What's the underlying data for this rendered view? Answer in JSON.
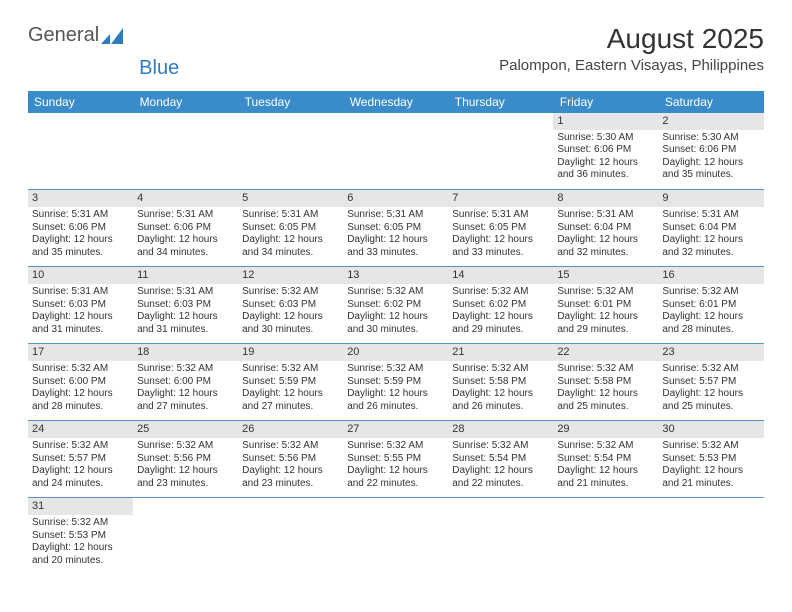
{
  "brand": {
    "general": "General",
    "blue": "Blue"
  },
  "title": "August 2025",
  "location": "Palompon, Eastern Visayas, Philippines",
  "colors": {
    "header_bg": "#3a8bc9",
    "header_text": "#ffffff",
    "daynum_bg": "#e6e6e6",
    "row_divider": "#5593c8",
    "text": "#333333",
    "logo_blue": "#2f7bbf"
  },
  "fonts": {
    "title_size_pt": 21,
    "location_size_pt": 11,
    "dayhead_size_pt": 9,
    "daynum_size_pt": 8,
    "detail_size_pt": 7.5
  },
  "day_headers": [
    "Sunday",
    "Monday",
    "Tuesday",
    "Wednesday",
    "Thursday",
    "Friday",
    "Saturday"
  ],
  "weeks": [
    [
      null,
      null,
      null,
      null,
      null,
      {
        "n": "1",
        "sunrise": "5:30 AM",
        "sunset": "6:06 PM",
        "day_h": "12",
        "day_m": "36"
      },
      {
        "n": "2",
        "sunrise": "5:30 AM",
        "sunset": "6:06 PM",
        "day_h": "12",
        "day_m": "35"
      }
    ],
    [
      {
        "n": "3",
        "sunrise": "5:31 AM",
        "sunset": "6:06 PM",
        "day_h": "12",
        "day_m": "35"
      },
      {
        "n": "4",
        "sunrise": "5:31 AM",
        "sunset": "6:06 PM",
        "day_h": "12",
        "day_m": "34"
      },
      {
        "n": "5",
        "sunrise": "5:31 AM",
        "sunset": "6:05 PM",
        "day_h": "12",
        "day_m": "34"
      },
      {
        "n": "6",
        "sunrise": "5:31 AM",
        "sunset": "6:05 PM",
        "day_h": "12",
        "day_m": "33"
      },
      {
        "n": "7",
        "sunrise": "5:31 AM",
        "sunset": "6:05 PM",
        "day_h": "12",
        "day_m": "33"
      },
      {
        "n": "8",
        "sunrise": "5:31 AM",
        "sunset": "6:04 PM",
        "day_h": "12",
        "day_m": "32"
      },
      {
        "n": "9",
        "sunrise": "5:31 AM",
        "sunset": "6:04 PM",
        "day_h": "12",
        "day_m": "32"
      }
    ],
    [
      {
        "n": "10",
        "sunrise": "5:31 AM",
        "sunset": "6:03 PM",
        "day_h": "12",
        "day_m": "31"
      },
      {
        "n": "11",
        "sunrise": "5:31 AM",
        "sunset": "6:03 PM",
        "day_h": "12",
        "day_m": "31"
      },
      {
        "n": "12",
        "sunrise": "5:32 AM",
        "sunset": "6:03 PM",
        "day_h": "12",
        "day_m": "30"
      },
      {
        "n": "13",
        "sunrise": "5:32 AM",
        "sunset": "6:02 PM",
        "day_h": "12",
        "day_m": "30"
      },
      {
        "n": "14",
        "sunrise": "5:32 AM",
        "sunset": "6:02 PM",
        "day_h": "12",
        "day_m": "29"
      },
      {
        "n": "15",
        "sunrise": "5:32 AM",
        "sunset": "6:01 PM",
        "day_h": "12",
        "day_m": "29"
      },
      {
        "n": "16",
        "sunrise": "5:32 AM",
        "sunset": "6:01 PM",
        "day_h": "12",
        "day_m": "28"
      }
    ],
    [
      {
        "n": "17",
        "sunrise": "5:32 AM",
        "sunset": "6:00 PM",
        "day_h": "12",
        "day_m": "28"
      },
      {
        "n": "18",
        "sunrise": "5:32 AM",
        "sunset": "6:00 PM",
        "day_h": "12",
        "day_m": "27"
      },
      {
        "n": "19",
        "sunrise": "5:32 AM",
        "sunset": "5:59 PM",
        "day_h": "12",
        "day_m": "27"
      },
      {
        "n": "20",
        "sunrise": "5:32 AM",
        "sunset": "5:59 PM",
        "day_h": "12",
        "day_m": "26"
      },
      {
        "n": "21",
        "sunrise": "5:32 AM",
        "sunset": "5:58 PM",
        "day_h": "12",
        "day_m": "26"
      },
      {
        "n": "22",
        "sunrise": "5:32 AM",
        "sunset": "5:58 PM",
        "day_h": "12",
        "day_m": "25"
      },
      {
        "n": "23",
        "sunrise": "5:32 AM",
        "sunset": "5:57 PM",
        "day_h": "12",
        "day_m": "25"
      }
    ],
    [
      {
        "n": "24",
        "sunrise": "5:32 AM",
        "sunset": "5:57 PM",
        "day_h": "12",
        "day_m": "24"
      },
      {
        "n": "25",
        "sunrise": "5:32 AM",
        "sunset": "5:56 PM",
        "day_h": "12",
        "day_m": "23"
      },
      {
        "n": "26",
        "sunrise": "5:32 AM",
        "sunset": "5:56 PM",
        "day_h": "12",
        "day_m": "23"
      },
      {
        "n": "27",
        "sunrise": "5:32 AM",
        "sunset": "5:55 PM",
        "day_h": "12",
        "day_m": "22"
      },
      {
        "n": "28",
        "sunrise": "5:32 AM",
        "sunset": "5:54 PM",
        "day_h": "12",
        "day_m": "22"
      },
      {
        "n": "29",
        "sunrise": "5:32 AM",
        "sunset": "5:54 PM",
        "day_h": "12",
        "day_m": "21"
      },
      {
        "n": "30",
        "sunrise": "5:32 AM",
        "sunset": "5:53 PM",
        "day_h": "12",
        "day_m": "21"
      }
    ],
    [
      {
        "n": "31",
        "sunrise": "5:32 AM",
        "sunset": "5:53 PM",
        "day_h": "12",
        "day_m": "20"
      },
      null,
      null,
      null,
      null,
      null,
      null
    ]
  ],
  "labels": {
    "sunrise": "Sunrise: ",
    "sunset": "Sunset: ",
    "daylight_prefix": "Daylight: ",
    "hours_word": " hours",
    "and_word": "and ",
    "minutes_word": " minutes."
  }
}
